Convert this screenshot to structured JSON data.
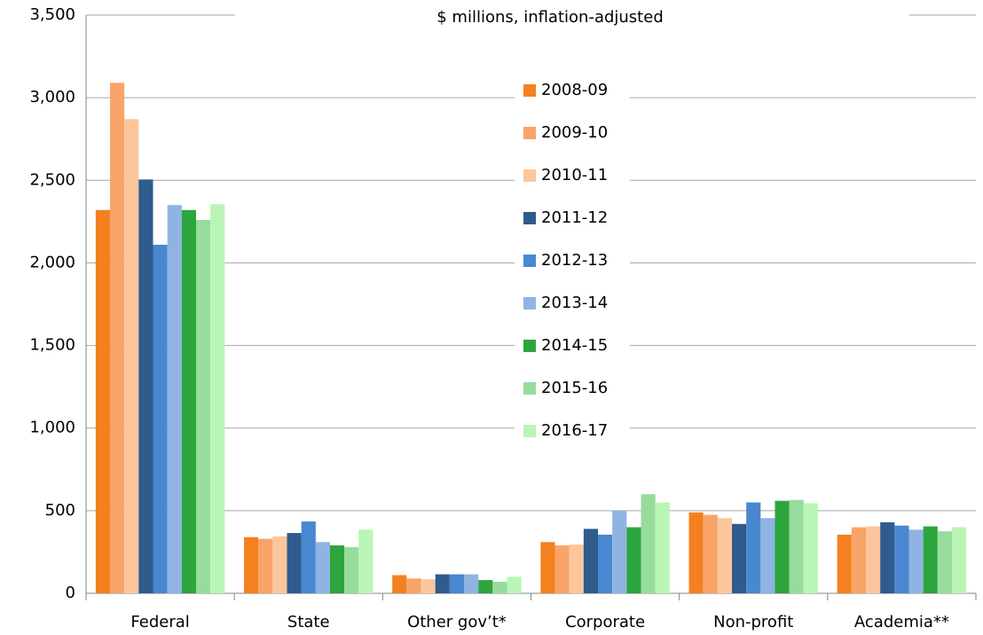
{
  "chart_data": {
    "type": "bar",
    "subtitle": "$ millions, inflation-adjusted",
    "categories": [
      "Federal",
      "State",
      "Other gov’t*",
      "Corporate",
      "Non-profit",
      "Academia**"
    ],
    "series": [
      {
        "name": "2008-09",
        "color": "#f4801f",
        "values": [
          2320,
          340,
          110,
          310,
          490,
          355
        ]
      },
      {
        "name": "2009-10",
        "color": "#f8a468",
        "values": [
          3090,
          330,
          90,
          290,
          475,
          400
        ]
      },
      {
        "name": "2010-11",
        "color": "#fbc69c",
        "values": [
          2870,
          345,
          85,
          295,
          455,
          405
        ]
      },
      {
        "name": "2011-12",
        "color": "#2f5b8d",
        "values": [
          2505,
          365,
          115,
          390,
          420,
          430
        ]
      },
      {
        "name": "2012-13",
        "color": "#4a87d1",
        "values": [
          2110,
          435,
          115,
          355,
          550,
          410
        ]
      },
      {
        "name": "2013-14",
        "color": "#8fb4e3",
        "values": [
          2350,
          310,
          115,
          500,
          455,
          385
        ]
      },
      {
        "name": "2014-15",
        "color": "#2ca53c",
        "values": [
          2320,
          290,
          80,
          400,
          560,
          405
        ]
      },
      {
        "name": "2015-16",
        "color": "#97db9d",
        "values": [
          2260,
          280,
          70,
          600,
          565,
          375
        ]
      },
      {
        "name": "2016-17",
        "color": "#b9f6b5",
        "values": [
          2355,
          385,
          100,
          550,
          545,
          400
        ]
      }
    ],
    "ylim": [
      0,
      3500
    ],
    "yticks": [
      0,
      500,
      {
        "value": 1000,
        "label": "1,000"
      },
      {
        "value": 1500,
        "label": "1,500"
      },
      {
        "value": 2000,
        "label": "2,000"
      },
      {
        "value": 2500,
        "label": "2,500"
      },
      {
        "value": 3000,
        "label": "3,000"
      },
      {
        "value": 3500,
        "label": "3,500"
      }
    ],
    "grid": true
  }
}
